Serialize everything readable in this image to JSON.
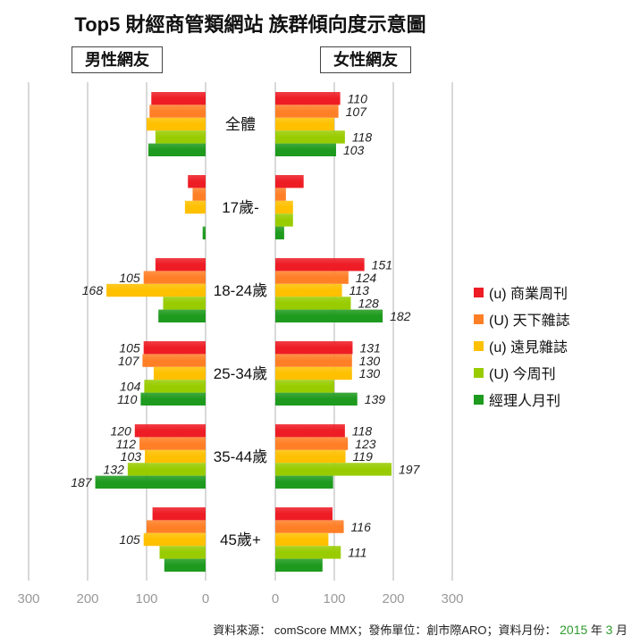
{
  "title": "Top5 財經商管類網站  族群傾向度示意圖",
  "panels": {
    "male": "男性網友",
    "female": "女性網友"
  },
  "source": {
    "text": "資料來源： comScore MMX；發佈單位：創市際ARO；資料月份：",
    "year": "2015",
    "year_unit": "年",
    "month": "3",
    "month_unit": "月"
  },
  "colors": [
    "#ee1c25",
    "#ff7f27",
    "#ffc000",
    "#99cc00",
    "#1e9a1e"
  ],
  "chart_data": {
    "type": "bar",
    "orientation": "horizontal",
    "categories": [
      "全體",
      "17歲-",
      "18-24歲",
      "25-34歲",
      "35-44歲",
      "45歲+"
    ],
    "series_names": [
      "(u) 商業周刊",
      "(U) 天下雜誌",
      "(u) 遠見雜誌",
      "(U) 今周刊",
      "經理人月刊"
    ],
    "male": [
      [
        92,
        95,
        100,
        85,
        97
      ],
      [
        30,
        22,
        35,
        0,
        5
      ],
      [
        85,
        105,
        168,
        72,
        80
      ],
      [
        105,
        107,
        88,
        104,
        110
      ],
      [
        120,
        112,
        103,
        132,
        187
      ],
      [
        90,
        100,
        105,
        78,
        70
      ]
    ],
    "male_labels": [
      [
        "",
        "",
        "",
        "",
        ""
      ],
      [
        "",
        "",
        "",
        "",
        ""
      ],
      [
        "",
        "105",
        "168",
        "",
        ""
      ],
      [
        "105",
        "107",
        "",
        "104",
        "110"
      ],
      [
        "120",
        "112",
        "103",
        "132",
        "187"
      ],
      [
        "",
        "",
        "105",
        "",
        ""
      ]
    ],
    "female": [
      [
        110,
        107,
        100,
        118,
        103
      ],
      [
        48,
        18,
        30,
        30,
        15
      ],
      [
        151,
        124,
        113,
        128,
        182
      ],
      [
        131,
        130,
        130,
        100,
        139
      ],
      [
        118,
        123,
        119,
        197,
        98
      ],
      [
        97,
        116,
        90,
        111,
        80
      ]
    ],
    "female_labels": [
      [
        "110",
        "107",
        "",
        "118",
        "103"
      ],
      [
        "",
        "",
        "",
        "",
        ""
      ],
      [
        "151",
        "124",
        "113",
        "128",
        "182"
      ],
      [
        "131",
        "130",
        "130",
        "",
        "139"
      ],
      [
        "118",
        "123",
        "119",
        "197",
        ""
      ],
      [
        "",
        "116",
        "",
        "111",
        ""
      ]
    ],
    "male_axis": {
      "ticks": [
        "300",
        "200",
        "100",
        "0"
      ],
      "range": [
        300,
        0
      ]
    },
    "female_axis": {
      "ticks": [
        "0",
        "100",
        "200",
        "300"
      ],
      "range": [
        0,
        300
      ]
    },
    "grid": true,
    "legend": "right"
  }
}
